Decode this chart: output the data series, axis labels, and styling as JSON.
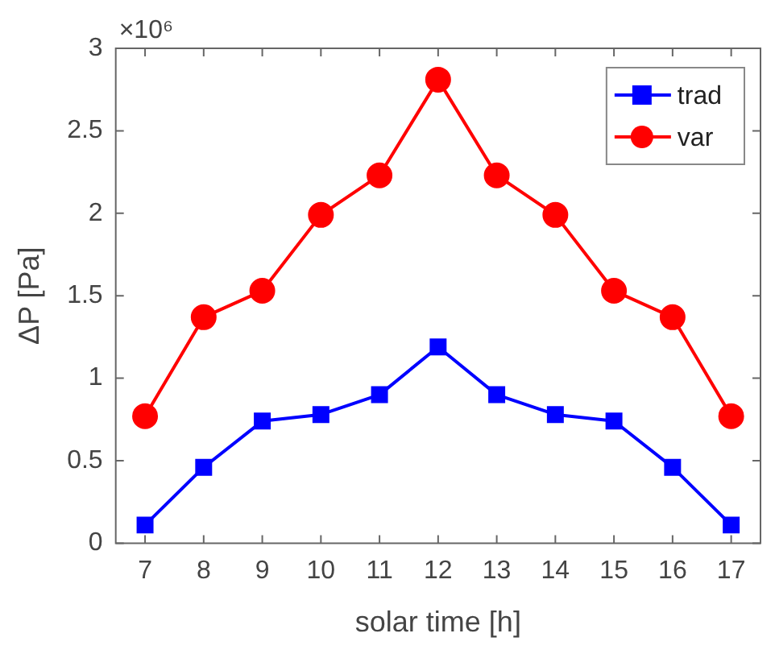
{
  "chart_data": {
    "type": "line",
    "xlabel": "solar time [h]",
    "ylabel": "ΔP [Pa]",
    "annotations": [
      "×10⁶"
    ],
    "x": [
      7,
      8,
      9,
      10,
      11,
      12,
      13,
      14,
      15,
      16,
      17
    ],
    "xlim": [
      6.5,
      17.5
    ],
    "xticks": [
      7,
      8,
      9,
      10,
      11,
      12,
      13,
      14,
      15,
      16,
      17
    ],
    "ylim": [
      0,
      3
    ],
    "yticks": [
      0,
      0.5,
      1,
      1.5,
      2,
      2.5,
      3
    ],
    "grid": false,
    "legend": "top right",
    "series": [
      {
        "name": "trad",
        "color": "#0000ff",
        "marker": "square",
        "values": [
          0.11,
          0.46,
          0.74,
          0.78,
          0.9,
          1.19,
          0.9,
          0.78,
          0.74,
          0.46,
          0.11
        ]
      },
      {
        "name": "var",
        "color": "#ff0000",
        "marker": "circle",
        "values": [
          0.77,
          1.37,
          1.53,
          1.99,
          2.23,
          2.81,
          2.23,
          1.99,
          1.53,
          1.37,
          0.77
        ]
      }
    ]
  }
}
